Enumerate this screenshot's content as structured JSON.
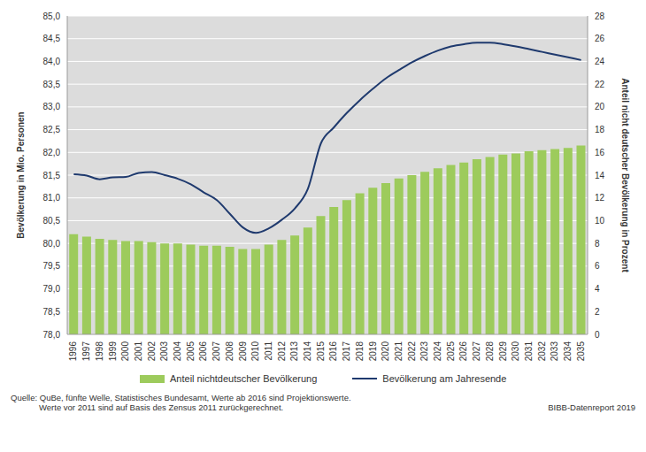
{
  "chart_data": {
    "type": "bar",
    "categories": [
      "1996",
      "1997",
      "1998",
      "1999",
      "2000",
      "2001",
      "2002",
      "2003",
      "2004",
      "2005",
      "2006",
      "2007",
      "2008",
      "2009",
      "2010",
      "2011",
      "2012",
      "2013",
      "2014",
      "2015",
      "2016",
      "2017",
      "2018",
      "2019",
      "2020",
      "2021",
      "2022",
      "2023",
      "2024",
      "2025",
      "2026",
      "2027",
      "2028",
      "2029",
      "2030",
      "2031",
      "2032",
      "2033",
      "2034",
      "2035"
    ],
    "series": [
      {
        "name": "Anteil nichtdeutscher Bevölkerung",
        "type": "bar",
        "axis": "y2",
        "color": "#9dcb5c",
        "values": [
          8.8,
          8.6,
          8.4,
          8.3,
          8.2,
          8.2,
          8.1,
          8.0,
          8.0,
          7.9,
          7.8,
          7.8,
          7.7,
          7.5,
          7.5,
          7.9,
          8.3,
          8.7,
          9.4,
          10.4,
          11.2,
          11.8,
          12.4,
          12.9,
          13.3,
          13.7,
          14.0,
          14.3,
          14.6,
          14.9,
          15.1,
          15.4,
          15.6,
          15.8,
          15.9,
          16.1,
          16.2,
          16.3,
          16.4,
          16.6
        ]
      },
      {
        "name": "Bevölkerung am Jahresende",
        "type": "line",
        "color": "#1f3a6e",
        "values": [
          81.52,
          81.49,
          81.41,
          81.45,
          81.46,
          81.55,
          81.57,
          81.5,
          81.42,
          81.3,
          81.12,
          80.95,
          80.65,
          80.35,
          80.23,
          80.33,
          80.52,
          80.77,
          81.2,
          82.2,
          82.55,
          82.87,
          83.15,
          83.4,
          83.63,
          83.81,
          83.98,
          84.12,
          84.24,
          84.33,
          84.38,
          84.41,
          84.41,
          84.38,
          84.33,
          84.27,
          84.21,
          84.15,
          84.09,
          84.03
        ]
      }
    ],
    "y_label": "Bevölkerung in Mio. Personen",
    "y2_label": "Anteil nicht deutscher Bevölkerung in Prozent",
    "ylim": [
      78,
      85
    ],
    "yticks": [
      {
        "value": 78,
        "label": "78,0"
      },
      {
        "value": 78.5,
        "label": "78,5"
      },
      {
        "value": 79,
        "label": "79,0"
      },
      {
        "value": 79.5,
        "label": "79,5"
      },
      {
        "value": 80,
        "label": "80,0"
      },
      {
        "value": 80.5,
        "label": "80,5"
      },
      {
        "value": 81,
        "label": "81,0"
      },
      {
        "value": 81.5,
        "label": "81,5"
      },
      {
        "value": 82,
        "label": "82,0"
      },
      {
        "value": 82.5,
        "label": "82,5"
      },
      {
        "value": 83,
        "label": "83,0"
      },
      {
        "value": 83.5,
        "label": "83,5"
      },
      {
        "value": 84,
        "label": "84,0"
      },
      {
        "value": 84.5,
        "label": "84,5"
      },
      {
        "value": 85,
        "label": "85,0"
      }
    ],
    "y2lim": [
      0,
      28
    ],
    "y2ticks": [
      0,
      2,
      4,
      6,
      8,
      10,
      12,
      14,
      16,
      18,
      20,
      22,
      24,
      26,
      28
    ],
    "grid": true,
    "legend": "bottom",
    "annotations": [
      "Quelle: QuBe, fünfte Welle, Statistisches Bundesamt, Werte ab 2016 sind Projektionswerte.",
      "Werte vor 2011 sind auf Basis des Zensus 2011 zurückgerechnet.",
      "BIBB-Datenreport 2019"
    ]
  }
}
